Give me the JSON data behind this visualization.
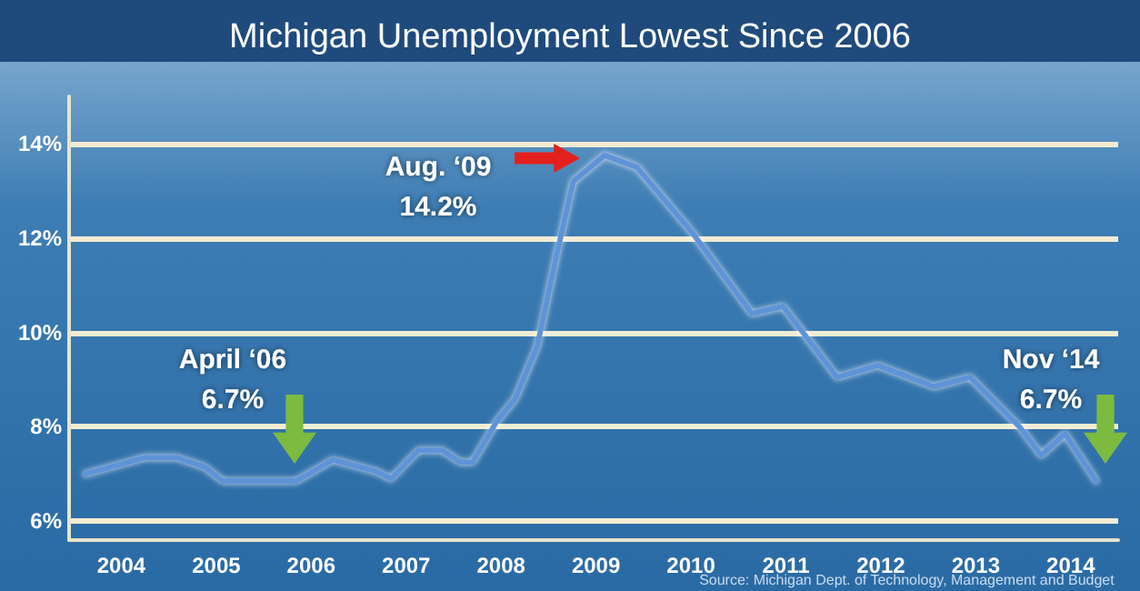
{
  "chart_data": {
    "type": "line",
    "title": "Michigan Unemployment Lowest Since 2006",
    "x": [
      2004.12,
      2004.75,
      2005.08,
      2005.38,
      2005.57,
      2006.34,
      2006.73,
      2007.19,
      2007.34,
      2007.63,
      2007.88,
      2008.07,
      2008.2,
      2008.45,
      2008.65,
      2008.88,
      2009.07,
      2009.26,
      2009.59,
      2009.93,
      2010.5,
      2011.14,
      2011.47,
      2012.04,
      2012.47,
      2013.06,
      2013.44,
      2013.96,
      2014.19,
      2014.44,
      2014.77
    ],
    "series": [
      {
        "color": "#5f93d8",
        "values": [
          7.0,
          7.35,
          7.35,
          7.15,
          6.85,
          6.85,
          7.3,
          7.05,
          6.9,
          7.5,
          7.5,
          7.25,
          7.25,
          8.1,
          8.6,
          9.7,
          11.5,
          13.2,
          13.75,
          13.5,
          12.15,
          10.4,
          10.55,
          9.05,
          9.3,
          8.85,
          9.05,
          8.0,
          7.4,
          7.85,
          6.85
        ]
      }
    ],
    "xlim": [
      2003.95,
      2015.0
    ],
    "xticks": [
      {
        "value": 2004.5,
        "label": "2004"
      },
      {
        "value": 2005.5,
        "label": "2005"
      },
      {
        "value": 2006.5,
        "label": "2006"
      },
      {
        "value": 2007.5,
        "label": "2007"
      },
      {
        "value": 2008.5,
        "label": "2008"
      },
      {
        "value": 2009.5,
        "label": "2009"
      },
      {
        "value": 2010.5,
        "label": "2010"
      },
      {
        "value": 2011.5,
        "label": "2011"
      },
      {
        "value": 2012.5,
        "label": "2012"
      },
      {
        "value": 2013.5,
        "label": "2013"
      },
      {
        "value": 2014.5,
        "label": "2014"
      }
    ],
    "ylim": [
      5.6,
      15
    ],
    "yticks": [
      {
        "value": 6,
        "label": "6%"
      },
      {
        "value": 8,
        "label": "8%"
      },
      {
        "value": 10,
        "label": "10%"
      },
      {
        "value": 12,
        "label": "12%"
      },
      {
        "value": 14,
        "label": "14%"
      }
    ],
    "grid": "y",
    "marker": "none",
    "line_style": "solid",
    "annotations": [
      "April ‘06\n6.7%",
      "Aug. ‘09\n14.2%",
      "Nov ‘14\n6.7%",
      "Source: Michigan Dept. of Technology, Management and Budget"
    ]
  }
}
